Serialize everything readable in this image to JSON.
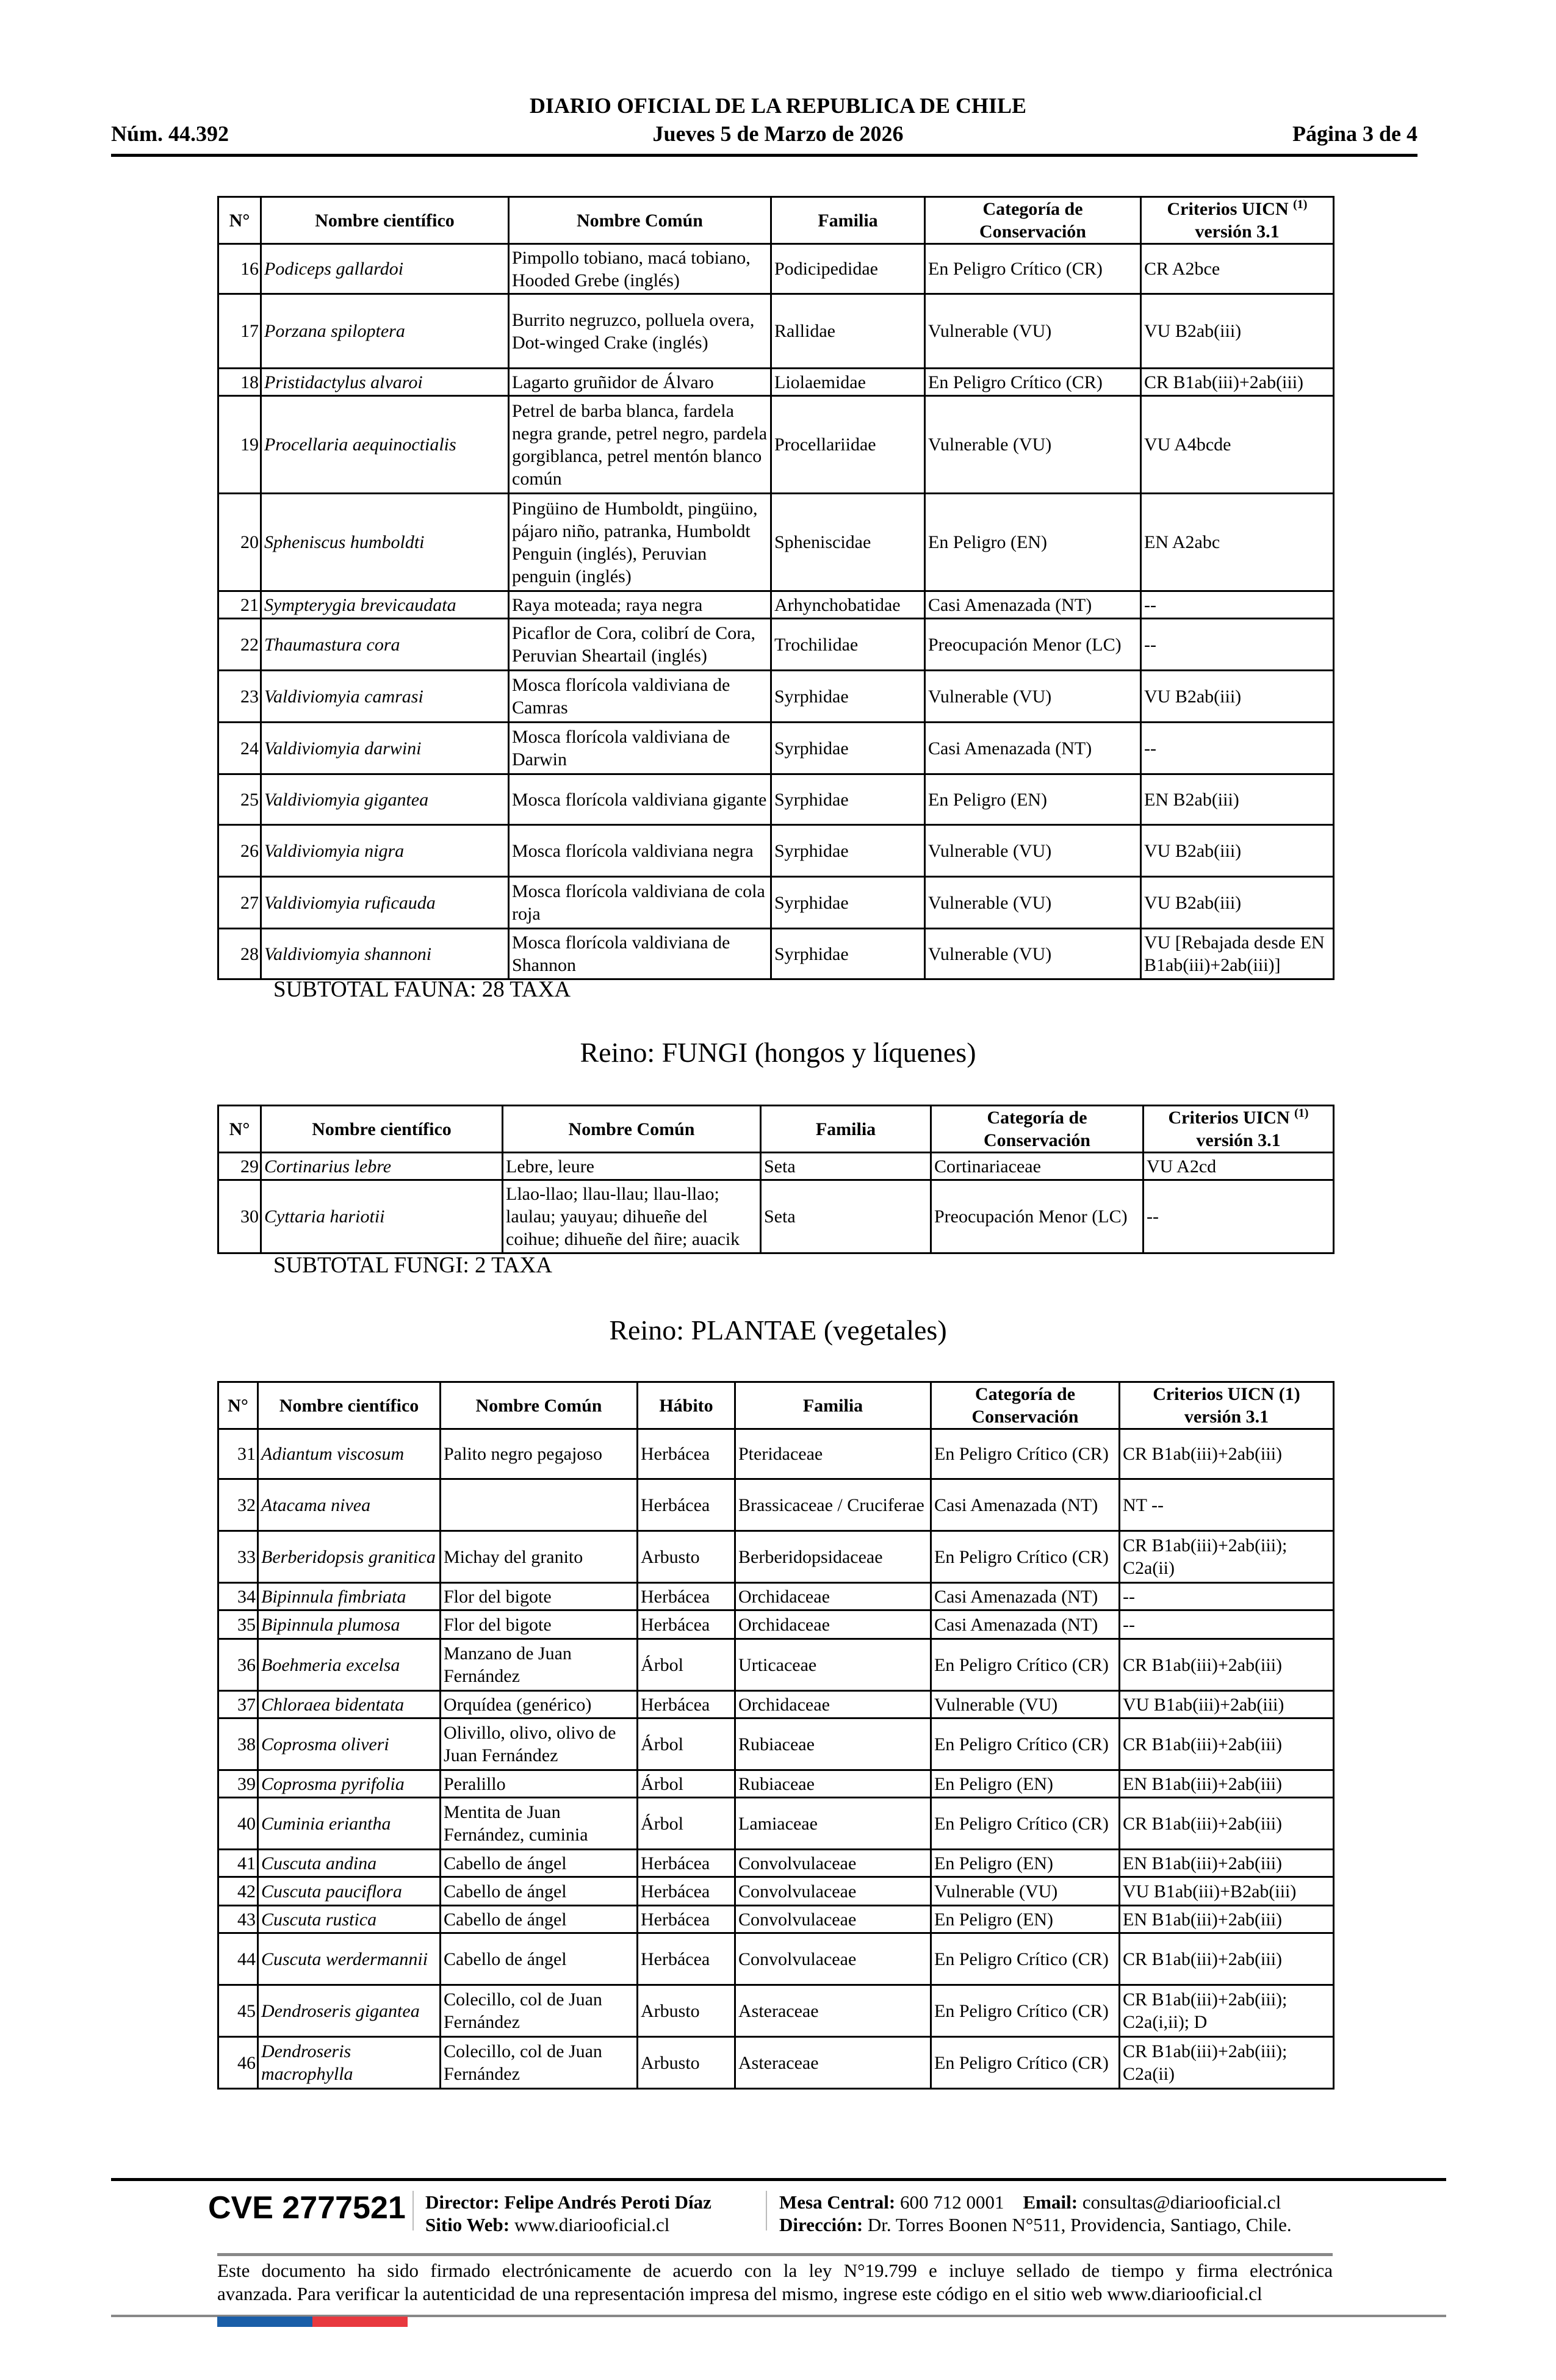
{
  "header": {
    "title": "DIARIO OFICIAL DE LA REPUBLICA DE CHILE",
    "number": "Núm. 44.392",
    "date": "Jueves 5 de Marzo de 2026",
    "page": "Página 3 de 4"
  },
  "fauna_table": {
    "columns": [
      "N°",
      "Nombre científico",
      "Nombre Común",
      "Familia",
      "Categoría de Conservación",
      "Criterios UICN",
      "versión 3.1"
    ],
    "footnote_mark": "(1)",
    "rows": [
      [
        "16",
        "Podiceps gallardoi",
        "Pimpollo tobiano, macá tobiano, Hooded Grebe (inglés)",
        "Podicipedidae",
        "En Peligro Crítico (CR)",
        "CR A2bce"
      ],
      [
        "17",
        "Porzana spiloptera",
        "Burrito negruzco, polluela overa, Dot-winged Crake (inglés)",
        "Rallidae",
        "Vulnerable (VU)",
        "VU B2ab(iii)"
      ],
      [
        "18",
        "Pristidactylus alvaroi",
        "Lagarto gruñidor de Álvaro",
        "Liolaemidae",
        "En Peligro Crítico (CR)",
        "CR B1ab(iii)+2ab(iii)"
      ],
      [
        "19",
        "Procellaria aequinoctialis",
        "Petrel de barba blanca, fardela negra grande, petrel negro, pardela gorgiblanca, petrel mentón blanco común",
        "Procellariidae",
        "Vulnerable (VU)",
        "VU A4bcde"
      ],
      [
        "20",
        "Spheniscus humboldti",
        "Pingüino de Humboldt, pingüino, pájaro niño, patranka, Humboldt Penguin (inglés), Peruvian penguin (inglés)",
        "Spheniscidae",
        "En Peligro (EN)",
        "EN A2abc"
      ],
      [
        "21",
        "Sympterygia brevicaudata",
        "Raya moteada; raya negra",
        "Arhynchobatidae",
        "Casi Amenazada (NT)",
        "--"
      ],
      [
        "22",
        "Thaumastura cora",
        "Picaflor de Cora, colibrí de Cora, Peruvian Sheartail (inglés)",
        "Trochilidae",
        "Preocupación Menor (LC)",
        "--"
      ],
      [
        "23",
        "Valdiviomyia camrasi",
        "Mosca florícola valdiviana de Camras",
        "Syrphidae",
        "Vulnerable (VU)",
        "VU B2ab(iii)"
      ],
      [
        "24",
        "Valdiviomyia darwini",
        "Mosca florícola valdiviana de Darwin",
        "Syrphidae",
        "Casi Amenazada (NT)",
        "--"
      ],
      [
        "25",
        "Valdiviomyia gigantea",
        "Mosca florícola valdiviana gigante",
        "Syrphidae",
        "En Peligro (EN)",
        "EN B2ab(iii)"
      ],
      [
        "26",
        "Valdiviomyia nigra",
        "Mosca florícola valdiviana negra",
        "Syrphidae",
        "Vulnerable (VU)",
        "VU B2ab(iii)"
      ],
      [
        "27",
        "Valdiviomyia ruficauda",
        "Mosca florícola valdiviana de cola roja",
        "Syrphidae",
        "Vulnerable (VU)",
        "VU B2ab(iii)"
      ],
      [
        "28",
        "Valdiviomyia shannoni",
        "Mosca florícola valdiviana de Shannon",
        "Syrphidae",
        "Vulnerable (VU)",
        "VU [Rebajada desde EN B1ab(iii)+2ab(iii)]"
      ]
    ],
    "subtotal": "SUBTOTAL FAUNA: 28 TAXA"
  },
  "fungi": {
    "title": "Reino: FUNGI (hongos y líquenes)",
    "columns": [
      "N°",
      "Nombre científico",
      "Nombre Común",
      "Familia",
      "Categoría de Conservación",
      "Criterios UICN",
      "versión 3.1"
    ],
    "footnote_mark": "(1)",
    "rows": [
      [
        "29",
        "Cortinarius lebre",
        "Lebre, leure",
        "Seta",
        "Cortinariaceae",
        "VU A2cd"
      ],
      [
        "30",
        "Cyttaria hariotii",
        "Llao-llao; llau-llau; llau-llao; laulau; yauyau; dihueñe del coihue; dihueñe del ñire; auacik",
        "Seta",
        "Preocupación Menor (LC)",
        "--"
      ]
    ],
    "subtotal": "SUBTOTAL FUNGI: 2 TAXA"
  },
  "plantae": {
    "title": "Reino: PLANTAE (vegetales)",
    "columns": [
      "N°",
      "Nombre científico",
      "Nombre Común",
      "Hábito",
      "Familia",
      "Categoría de Conservación",
      "Criterios UICN (1) versión 3.1"
    ],
    "rows": [
      [
        "31",
        "Adiantum viscosum",
        "Palito negro pegajoso",
        "Herbácea",
        "Pteridaceae",
        "En Peligro Crítico (CR)",
        "CR B1ab(iii)+2ab(iii)"
      ],
      [
        "32",
        "Atacama nivea",
        "",
        "Herbácea",
        "Brassicaceae / Cruciferae",
        "Casi Amenazada (NT)",
        "NT --"
      ],
      [
        "33",
        "Berberidopsis granitica",
        "Michay del granito",
        "Arbusto",
        "Berberidopsidaceae",
        "En Peligro Crítico (CR)",
        "CR B1ab(iii)+2ab(iii); C2a(ii)"
      ],
      [
        "34",
        "Bipinnula fimbriata",
        "Flor del bigote",
        "Herbácea",
        "Orchidaceae",
        "Casi Amenazada (NT)",
        "--"
      ],
      [
        "35",
        "Bipinnula plumosa",
        "Flor del bigote",
        "Herbácea",
        "Orchidaceae",
        "Casi Amenazada (NT)",
        "--"
      ],
      [
        "36",
        "Boehmeria excelsa",
        "Manzano de Juan Fernández",
        "Árbol",
        "Urticaceae",
        "En Peligro Crítico (CR)",
        "CR B1ab(iii)+2ab(iii)"
      ],
      [
        "37",
        "Chloraea bidentata",
        "Orquídea (genérico)",
        "Herbácea",
        "Orchidaceae",
        "Vulnerable (VU)",
        "VU B1ab(iii)+2ab(iii)"
      ],
      [
        "38",
        "Coprosma oliveri",
        "Olivillo, olivo, olivo de Juan Fernández",
        "Árbol",
        "Rubiaceae",
        "En Peligro Crítico (CR)",
        "CR B1ab(iii)+2ab(iii)"
      ],
      [
        "39",
        "Coprosma pyrifolia",
        "Peralillo",
        "Árbol",
        "Rubiaceae",
        "En Peligro (EN)",
        "EN B1ab(iii)+2ab(iii)"
      ],
      [
        "40",
        "Cuminia eriantha",
        "Mentita de Juan Fernández, cuminia",
        "Árbol",
        "Lamiaceae",
        "En Peligro Crítico (CR)",
        "CR B1ab(iii)+2ab(iii)"
      ],
      [
        "41",
        "Cuscuta andina",
        "Cabello de ángel",
        "Herbácea",
        "Convolvulaceae",
        "En Peligro (EN)",
        "EN B1ab(iii)+2ab(iii)"
      ],
      [
        "42",
        "Cuscuta pauciflora",
        "Cabello de ángel",
        "Herbácea",
        "Convolvulaceae",
        "Vulnerable (VU)",
        "VU B1ab(iii)+B2ab(iii)"
      ],
      [
        "43",
        "Cuscuta rustica",
        "Cabello de ángel",
        "Herbácea",
        "Convolvulaceae",
        "En Peligro (EN)",
        "EN B1ab(iii)+2ab(iii)"
      ],
      [
        "44",
        "Cuscuta werdermannii",
        "Cabello de ángel",
        "Herbácea",
        "Convolvulaceae",
        "En Peligro Crítico (CR)",
        "CR B1ab(iii)+2ab(iii)"
      ],
      [
        "45",
        "Dendroseris gigantea",
        "Colecillo, col de Juan Fernández",
        "Arbusto",
        "Asteraceae",
        "En Peligro Crítico (CR)",
        "CR B1ab(iii)+2ab(iii); C2a(i,ii); D"
      ],
      [
        "46",
        "Dendroseris macrophylla",
        "Colecillo, col de Juan Fernández",
        "Arbusto",
        "Asteraceae",
        "En Peligro Crítico (CR)",
        "CR B1ab(iii)+2ab(iii); C2a(ii)"
      ]
    ]
  },
  "footer": {
    "cve": "CVE 2777521",
    "director_label": "Director:",
    "director": "Felipe Andrés Peroti Díaz",
    "web_label": "Sitio Web:",
    "web": "www.diariooficial.cl",
    "mesa_label": "Mesa Central:",
    "mesa": "600 712 0001",
    "email_label": "Email:",
    "email": "consultas@diariooficial.cl",
    "address_label": "Dirección:",
    "address": "Dr. Torres Boonen N°511, Providencia, Santiago, Chile.",
    "legal_1": "Este documento ha sido firmado electrónicamente de acuerdo con la ley N°19.799 e incluye sellado de tiempo y firma electrónica",
    "legal_2": "avanzada. Para verificar la autenticidad de una representación impresa del mismo, ingrese este código en el sitio web www.diariooficial.cl",
    "flag_colors": [
      "#1a5ea8",
      "#e8393f"
    ]
  }
}
